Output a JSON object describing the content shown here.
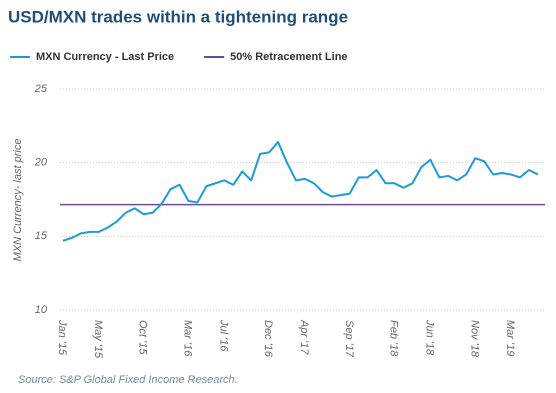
{
  "chart_data": {
    "type": "line",
    "title": "USD/MXN trades within a tightening range",
    "y_label": "MXN Currency- last price",
    "source": "Source: S&P Global Fixed Income Research.",
    "categories": [
      "Jan '15",
      null,
      null,
      null,
      "May '15",
      null,
      null,
      null,
      null,
      "Oct '15",
      null,
      null,
      null,
      null,
      "Mar '16",
      null,
      null,
      null,
      "Jul '16",
      null,
      null,
      null,
      null,
      "Dec '16",
      null,
      null,
      null,
      "Apr '17",
      null,
      null,
      null,
      null,
      "Sep '17",
      null,
      null,
      null,
      null,
      "Feb '18",
      null,
      null,
      null,
      "Jun '18",
      null,
      null,
      null,
      null,
      "Nov '18",
      null,
      null,
      null,
      "Mar '19",
      null,
      null,
      null
    ],
    "series": [
      {
        "name": "MXN Currency - Last Price",
        "color": "#1e9bd7",
        "values": [
          14.7,
          14.9,
          15.2,
          15.3,
          15.3,
          15.6,
          16.0,
          16.6,
          16.9,
          16.5,
          16.6,
          17.2,
          18.2,
          18.5,
          17.4,
          17.3,
          18.4,
          18.6,
          18.8,
          18.5,
          19.4,
          18.8,
          20.6,
          20.7,
          21.4,
          20.0,
          18.8,
          18.9,
          18.6,
          18.0,
          17.7,
          17.8,
          17.9,
          19.0,
          19.0,
          19.5,
          18.6,
          18.6,
          18.3,
          18.6,
          19.7,
          20.2,
          19.0,
          19.1,
          18.8,
          19.2,
          20.3,
          20.1,
          19.2,
          19.3,
          19.2,
          19.0,
          19.5,
          19.2
        ]
      }
    ],
    "reference_lines": [
      {
        "name": "50% Retracement Line",
        "color": "#6a4b9b",
        "value": 17.15
      }
    ],
    "ylim": [
      10,
      25
    ],
    "yticks": [
      10,
      15,
      20,
      25
    ],
    "grid": true
  }
}
